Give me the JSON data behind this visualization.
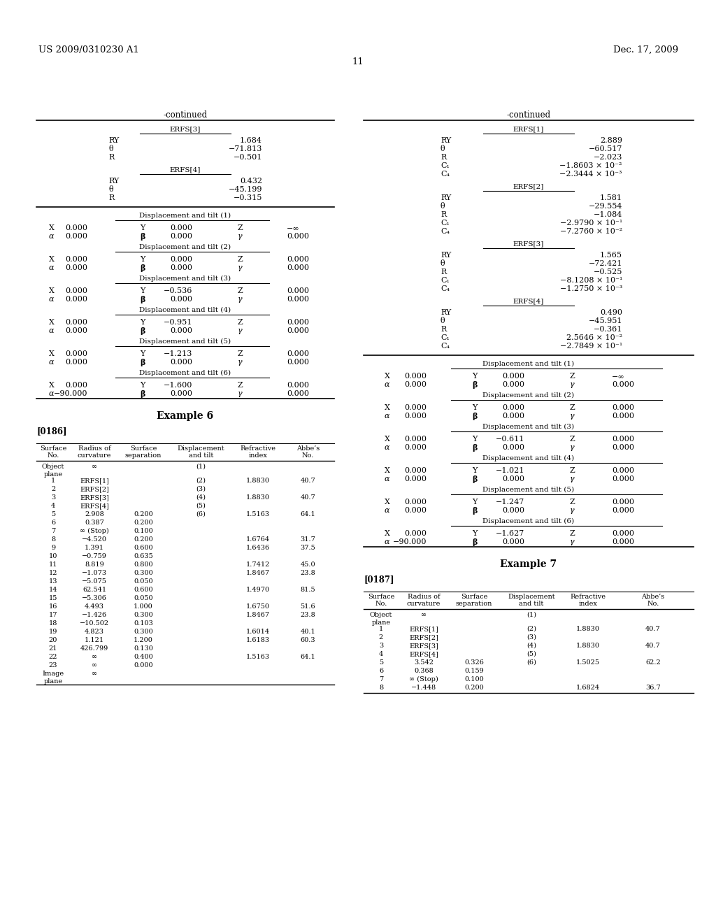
{
  "header_left": "US 2009/0310230 A1",
  "header_right": "Dec. 17, 2009",
  "page_number": "11",
  "bg_color": "#ffffff",
  "text_color": "#000000",
  "left_col": {
    "continued_title": "-continued",
    "erfs3_label": "ERFS[3]",
    "erfs3_data": [
      [
        "RY",
        "1.684"
      ],
      [
        "θ",
        "−71.813"
      ],
      [
        "R",
        "−0.501"
      ]
    ],
    "erfs4_label": "ERFS[4]",
    "erfs4_data": [
      [
        "RY",
        "0.432"
      ],
      [
        "θ",
        "−45.199"
      ],
      [
        "R",
        "−0.315"
      ]
    ],
    "disp_tilts": [
      {
        "label": "Displacement and tilt (1)",
        "row1": [
          "X",
          "0.000",
          "Y",
          "0.000",
          "Z",
          "−∞"
        ],
        "row2": [
          "α",
          "0.000",
          "β",
          "0.000",
          "γ",
          "0.000"
        ]
      },
      {
        "label": "Displacement and tilt (2)",
        "row1": [
          "X",
          "0.000",
          "Y",
          "0.000",
          "Z",
          "0.000"
        ],
        "row2": [
          "α",
          "0.000",
          "β",
          "0.000",
          "γ",
          "0.000"
        ]
      },
      {
        "label": "Displacement and tilt (3)",
        "row1": [
          "X",
          "0.000",
          "Y",
          "−0.536",
          "Z",
          "0.000"
        ],
        "row2": [
          "α",
          "0.000",
          "β",
          "0.000",
          "γ",
          "0.000"
        ]
      },
      {
        "label": "Displacement and tilt (4)",
        "row1": [
          "X",
          "0.000",
          "Y",
          "−0.951",
          "Z",
          "0.000"
        ],
        "row2": [
          "α",
          "0.000",
          "β",
          "0.000",
          "γ",
          "0.000"
        ]
      },
      {
        "label": "Displacement and tilt (5)",
        "row1": [
          "X",
          "0.000",
          "Y",
          "−1.213",
          "Z",
          "0.000"
        ],
        "row2": [
          "α",
          "0.000",
          "β",
          "0.000",
          "γ",
          "0.000"
        ]
      },
      {
        "label": "Displacement and tilt (6)",
        "row1": [
          "X",
          "0.000",
          "Y",
          "−1.600",
          "Z",
          "0.000"
        ],
        "row2": [
          "α",
          "−90.000",
          "β",
          "0.000",
          "γ",
          "0.000"
        ]
      }
    ],
    "example_title": "Example 6",
    "param_ref": "[0186]",
    "table_headers": [
      "Surface\nNo.",
      "Radius of\ncurvature",
      "Surface\nseparation",
      "Displacement\nand tilt",
      "Refractive\nindex",
      "Abbe’s\nNo."
    ],
    "table_rows": [
      [
        "Object\nplane",
        "∞",
        "",
        "(1)",
        "",
        ""
      ],
      [
        "1",
        "ERFS[1]",
        "",
        "(2)",
        "1.8830",
        "40.7"
      ],
      [
        "2",
        "ERFS[2]",
        "",
        "(3)",
        "",
        ""
      ],
      [
        "3",
        "ERFS[3]",
        "",
        "(4)",
        "1.8830",
        "40.7"
      ],
      [
        "4",
        "ERFS[4]",
        "",
        "(5)",
        "",
        ""
      ],
      [
        "5",
        "2.908",
        "0.200",
        "(6)",
        "1.5163",
        "64.1"
      ],
      [
        "6",
        "0.387",
        "0.200",
        "",
        "",
        ""
      ],
      [
        "7",
        "∞ (Stop)",
        "0.100",
        "",
        "",
        ""
      ],
      [
        "8",
        "−4.520",
        "0.200",
        "",
        "1.6764",
        "31.7"
      ],
      [
        "9",
        "1.391",
        "0.600",
        "",
        "1.6436",
        "37.5"
      ],
      [
        "10",
        "−0.759",
        "0.635",
        "",
        "",
        ""
      ],
      [
        "11",
        "8.819",
        "0.800",
        "",
        "1.7412",
        "45.0"
      ],
      [
        "12",
        "−1.073",
        "0.300",
        "",
        "1.8467",
        "23.8"
      ],
      [
        "13",
        "−5.075",
        "0.050",
        "",
        "",
        ""
      ],
      [
        "14",
        "62.541",
        "0.600",
        "",
        "1.4970",
        "81.5"
      ],
      [
        "15",
        "−5.306",
        "0.050",
        "",
        "",
        ""
      ],
      [
        "16",
        "4.493",
        "1.000",
        "",
        "1.6750",
        "51.6"
      ],
      [
        "17",
        "−1.426",
        "0.300",
        "",
        "1.8467",
        "23.8"
      ],
      [
        "18",
        "−10.502",
        "0.103",
        "",
        "",
        ""
      ],
      [
        "19",
        "4.823",
        "0.300",
        "",
        "1.6014",
        "40.1"
      ],
      [
        "20",
        "1.121",
        "1.200",
        "",
        "1.6183",
        "60.3"
      ],
      [
        "21",
        "426.799",
        "0.130",
        "",
        "",
        ""
      ],
      [
        "22",
        "∞",
        "0.400",
        "",
        "1.5163",
        "64.1"
      ],
      [
        "23",
        "∞",
        "0.000",
        "",
        "",
        ""
      ],
      [
        "Image\nplane",
        "∞",
        "",
        "",
        "",
        ""
      ]
    ]
  },
  "right_col": {
    "continued_title": "-continued",
    "erfs_blocks": [
      {
        "label": "ERFS[1]",
        "rows": [
          [
            "RY",
            "2.889"
          ],
          [
            "θ",
            "−60.517"
          ],
          [
            "R",
            "−2.023"
          ],
          [
            "C₁",
            "−1.8603 × 10⁻²"
          ],
          [
            "C₄",
            "−2.3444 × 10⁻³"
          ]
        ]
      },
      {
        "label": "ERFS[2]",
        "rows": [
          [
            "RY",
            "1.581"
          ],
          [
            "θ",
            "−29.554"
          ],
          [
            "R",
            "−1.084"
          ],
          [
            "C₁",
            "−2.9790 × 10⁻¹"
          ],
          [
            "C₄",
            "−7.2760 × 10⁻²"
          ]
        ]
      },
      {
        "label": "ERFS[3]",
        "rows": [
          [
            "RY",
            "1.565"
          ],
          [
            "θ",
            "−72.421"
          ],
          [
            "R",
            "−0.525"
          ],
          [
            "C₁",
            "−8.1208 × 10⁻¹"
          ],
          [
            "C₄",
            "−1.2750 × 10⁻³"
          ]
        ]
      },
      {
        "label": "ERFS[4]",
        "rows": [
          [
            "RY",
            "0.490"
          ],
          [
            "θ",
            "−45.951"
          ],
          [
            "R",
            "−0.361"
          ],
          [
            "C₁",
            "2.5646 × 10⁻²"
          ],
          [
            "C₄",
            "−2.7849 × 10⁻¹"
          ]
        ]
      }
    ],
    "disp_tilts": [
      {
        "label": "Displacement and tilt (1)",
        "row1": [
          "X",
          "0.000",
          "Y",
          "0.000",
          "Z",
          "−∞"
        ],
        "row2": [
          "α",
          "0.000",
          "β",
          "0.000",
          "γ",
          "0.000"
        ]
      },
      {
        "label": "Displacement and tilt (2)",
        "row1": [
          "X",
          "0.000",
          "Y",
          "0.000",
          "Z",
          "0.000"
        ],
        "row2": [
          "α",
          "0.000",
          "β",
          "0.000",
          "γ",
          "0.000"
        ]
      },
      {
        "label": "Displacement and tilt (3)",
        "row1": [
          "X",
          "0.000",
          "Y",
          "−0.611",
          "Z",
          "0.000"
        ],
        "row2": [
          "α",
          "0.000",
          "β",
          "0.000",
          "γ",
          "0.000"
        ]
      },
      {
        "label": "Displacement and tilt (4)",
        "row1": [
          "X",
          "0.000",
          "Y",
          "−1.021",
          "Z",
          "0.000"
        ],
        "row2": [
          "α",
          "0.000",
          "β",
          "0.000",
          "γ",
          "0.000"
        ]
      },
      {
        "label": "Displacement and tilt (5)",
        "row1": [
          "X",
          "0.000",
          "Y",
          "−1.247",
          "Z",
          "0.000"
        ],
        "row2": [
          "α",
          "0.000",
          "β",
          "0.000",
          "γ",
          "0.000"
        ]
      },
      {
        "label": "Displacement and tilt (6)",
        "row1": [
          "X",
          "0.000",
          "Y",
          "−1.627",
          "Z",
          "0.000"
        ],
        "row2": [
          "α",
          "−90.000",
          "β",
          "0.000",
          "γ",
          "0.000"
        ]
      }
    ],
    "example_title": "Example 7",
    "param_ref": "[0187]",
    "table_headers": [
      "Surface\nNo.",
      "Radius of\ncurvature",
      "Surface\nseparation",
      "Displacement\nand tilt",
      "Refractive\nindex",
      "Abbe’s\nNo."
    ],
    "table_rows": [
      [
        "Object\nplane",
        "∞",
        "",
        "(1)",
        "",
        ""
      ],
      [
        "1",
        "ERFS[1]",
        "",
        "(2)",
        "1.8830",
        "40.7"
      ],
      [
        "2",
        "ERFS[2]",
        "",
        "(3)",
        "",
        ""
      ],
      [
        "3",
        "ERFS[3]",
        "",
        "(4)",
        "1.8830",
        "40.7"
      ],
      [
        "4",
        "ERFS[4]",
        "",
        "(5)",
        "",
        ""
      ],
      [
        "5",
        "3.542",
        "0.326",
        "(6)",
        "1.5025",
        "62.2"
      ],
      [
        "6",
        "0.368",
        "0.159",
        "",
        "",
        ""
      ],
      [
        "7",
        "∞ (Stop)",
        "0.100",
        "",
        "",
        ""
      ],
      [
        "8",
        "−1.448",
        "0.200",
        "",
        "1.6824",
        "36.7"
      ]
    ]
  }
}
